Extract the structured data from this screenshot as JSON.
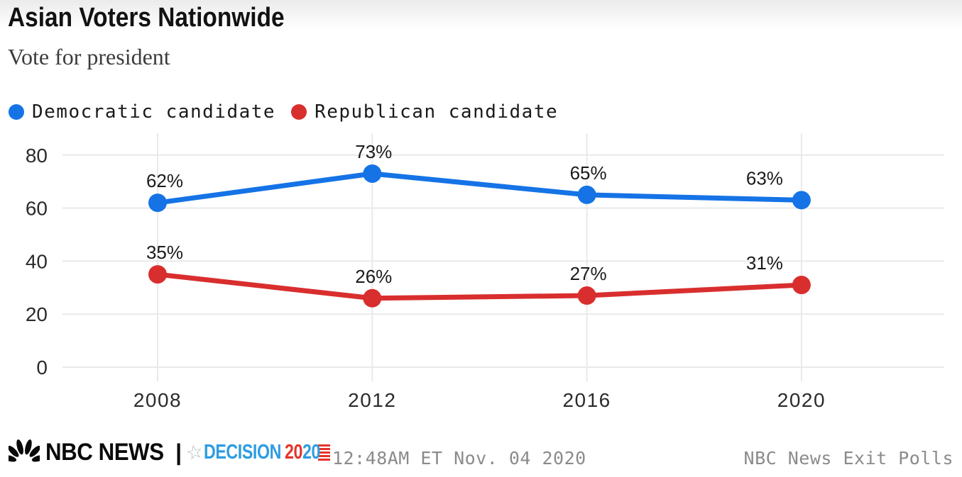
{
  "header": {
    "title": "Asian Voters Nationwide",
    "subtitle": "Vote for president"
  },
  "chart_data": {
    "type": "line",
    "title": "Asian Voters Nationwide",
    "subtitle": "Vote for president",
    "categories": [
      "2008",
      "2012",
      "2016",
      "2020"
    ],
    "series": [
      {
        "name": "Democratic candidate",
        "color": "#1573e6",
        "values": [
          62,
          73,
          65,
          63
        ]
      },
      {
        "name": "Republican candidate",
        "color": "#d92e2e",
        "values": [
          35,
          26,
          27,
          31
        ]
      }
    ],
    "xlabel": "",
    "ylabel": "",
    "ylim": [
      0,
      80
    ],
    "yticks": [
      0,
      20,
      40,
      60,
      80
    ],
    "grid": true,
    "grid_color": "#e9e9e9",
    "legend_position": "top",
    "data_label_format": "{v}%"
  },
  "footer": {
    "nbc_logo_text": "NBC NEWS",
    "divider": "|",
    "decision_word": "DECISION",
    "decision_year_red": "20",
    "decision_year_blue": "20",
    "decision_blue": "#2e9ce1",
    "decision_red": "#e6332a",
    "timestamp": "12:48AM ET Nov. 04 2020",
    "source": "NBC News Exit Polls"
  }
}
